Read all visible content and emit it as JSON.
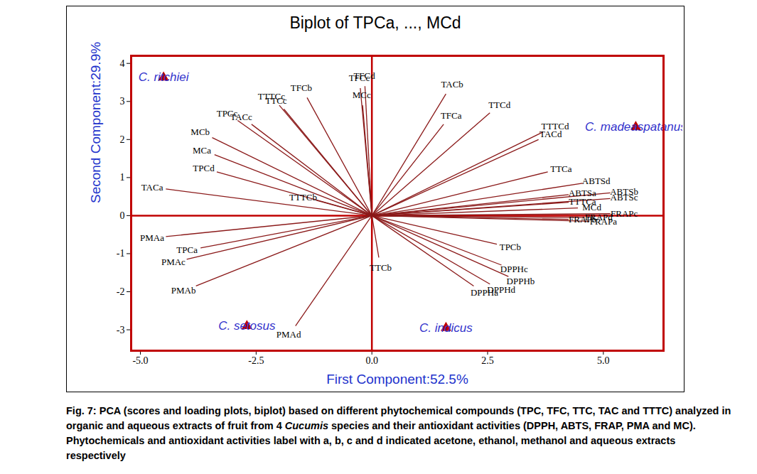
{
  "chart_data": {
    "type": "biplot",
    "title": "Biplot of TPCa, ..., MCd",
    "x_label": "First Component:52.5%",
    "y_label": "Second Component:29.9%",
    "xlim": [
      -5.2,
      6.3
    ],
    "ylim": [
      -3.55,
      4.2
    ],
    "xticks": [
      {
        "value": -5,
        "label": "-5.0"
      },
      {
        "value": -2.5,
        "label": "-2.5"
      },
      {
        "value": 0,
        "label": "0.0"
      },
      {
        "value": 2.5,
        "label": "2.5"
      },
      {
        "value": 5,
        "label": "5.0"
      }
    ],
    "yticks": [
      -3,
      -2,
      -1,
      0,
      1,
      2,
      3,
      4
    ],
    "color": "#8b1a1a",
    "marker": "triangle",
    "loadings": [
      {
        "name": "TPCa",
        "x": -3.7,
        "y": -0.85
      },
      {
        "name": "TPCb",
        "x": 2.7,
        "y": -0.75
      },
      {
        "name": "TPCc",
        "x": -2.9,
        "y": 2.5
      },
      {
        "name": "TPCd",
        "x": -3.35,
        "y": 1.15
      },
      {
        "name": "TFCa",
        "x": 1.55,
        "y": 2.4
      },
      {
        "name": "TFCb",
        "x": -1.4,
        "y": 3.1
      },
      {
        "name": "TFCc",
        "x": -0.25,
        "y": 3.35
      },
      {
        "name": "TFCd",
        "x": -0.15,
        "y": 3.4
      },
      {
        "name": "TTCa",
        "x": 3.8,
        "y": 1.15
      },
      {
        "name": "TTCb",
        "x": 0.15,
        "y": -1.1
      },
      {
        "name": "TTCc",
        "x": -1.9,
        "y": 2.8
      },
      {
        "name": "TTCd",
        "x": 2.55,
        "y": 2.7
      },
      {
        "name": "TACa",
        "x": -4.45,
        "y": 0.7
      },
      {
        "name": "TACb",
        "x": 1.6,
        "y": 3.2
      },
      {
        "name": "TACc",
        "x": -2.6,
        "y": 2.4
      },
      {
        "name": "TACd",
        "x": 3.6,
        "y": 2.0
      },
      {
        "name": "TTTCa",
        "x": 4.25,
        "y": 0.35
      },
      {
        "name": "TTTCb",
        "x": -1.2,
        "y": 0.4
      },
      {
        "name": "TTTCc",
        "x": -2.0,
        "y": 2.9
      },
      {
        "name": "TTTCd",
        "x": 3.7,
        "y": 2.2
      },
      {
        "name": "DPPHa",
        "x": 2.2,
        "y": -1.85
      },
      {
        "name": "DPPHb",
        "x": 2.95,
        "y": -1.6
      },
      {
        "name": "DPPHc",
        "x": 2.8,
        "y": -1.3
      },
      {
        "name": "DPPHd",
        "x": 2.55,
        "y": -1.8
      },
      {
        "name": "ABTSa",
        "x": 4.25,
        "y": 0.55
      },
      {
        "name": "ABTSb",
        "x": 5.15,
        "y": 0.6
      },
      {
        "name": "ABTSc",
        "x": 5.15,
        "y": 0.45
      },
      {
        "name": "ABTSd",
        "x": 4.55,
        "y": 0.85
      },
      {
        "name": "FRAPa",
        "x": 4.7,
        "y": -0.15
      },
      {
        "name": "FRAPb",
        "x": 4.25,
        "y": -0.1
      },
      {
        "name": "FRAPc",
        "x": 5.15,
        "y": 0.05
      },
      {
        "name": "FRAPd",
        "x": 4.6,
        "y": -0.05
      },
      {
        "name": "PMAa",
        "x": -4.45,
        "y": -0.55
      },
      {
        "name": "PMAb",
        "x": -3.8,
        "y": -1.85
      },
      {
        "name": "PMAc",
        "x": -4.0,
        "y": -1.15
      },
      {
        "name": "PMAd",
        "x": -1.65,
        "y": -2.9
      },
      {
        "name": "MCa",
        "x": -3.4,
        "y": 1.6
      },
      {
        "name": "MCb",
        "x": -3.45,
        "y": 2.05
      },
      {
        "name": "MCc",
        "x": -0.2,
        "y": 2.9
      },
      {
        "name": "MCd",
        "x": 4.45,
        "y": 0.2
      }
    ],
    "scores": [
      {
        "name": "C. ritchiei",
        "x": -4.5,
        "y": 3.63
      },
      {
        "name": "C. madeaspatanus",
        "x": 5.7,
        "y": 2.33
      },
      {
        "name": "C. setosus",
        "x": -2.7,
        "y": -2.9
      },
      {
        "name": "C. indicus",
        "x": 1.6,
        "y": -2.95
      }
    ],
    "caption": [
      "Fig. 7: PCA (scores and loading plots, biplot) based on different phytochemical compounds (TPC, TFC, TTC, TAC and TTTC) analyzed in organic and aqueous extracts of fruit from 4 ",
      "Cucumis",
      " species and their antioxidant activities (DPPH, ABTS, FRAP, PMA and MC). Phytochemicals and antioxidant activities label with a, b, c and d indicated acetone, ethanol, methanol and aqueous extracts respectively"
    ]
  }
}
